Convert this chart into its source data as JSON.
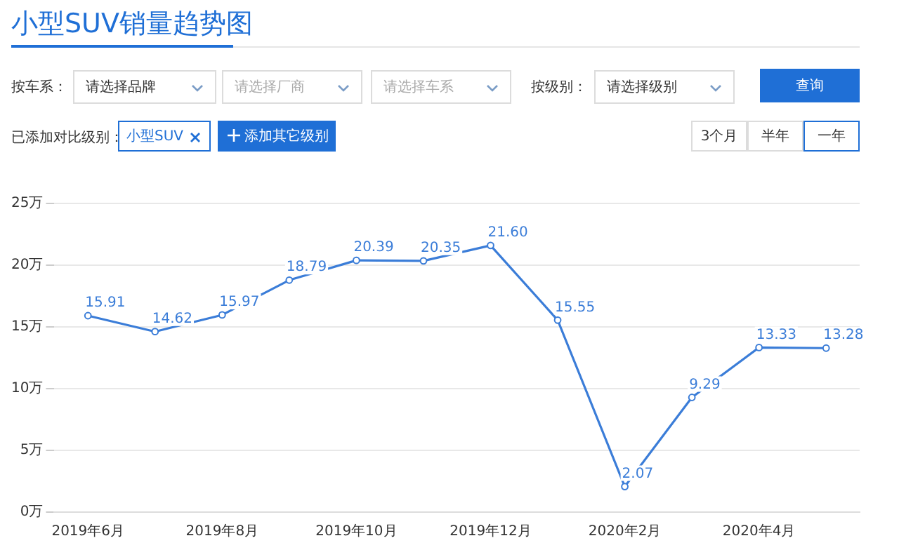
{
  "chart_data": {
    "type": "line",
    "title": "小型SUV销量趋势图",
    "categories": [
      "2019年6月",
      null,
      "2019年8月",
      null,
      "2019年10月",
      null,
      "2019年12月",
      null,
      "2020年2月",
      null,
      "2020年4月",
      null
    ],
    "series": [
      {
        "color": "#3b7dd8",
        "values": [
          15.91,
          14.62,
          15.97,
          18.79,
          20.39,
          20.35,
          21.6,
          15.55,
          2.07,
          9.29,
          13.33,
          13.28
        ],
        "value_labels": [
          "15.91",
          "14.62",
          "15.97",
          "18.79",
          "20.39",
          "20.35",
          "21.60",
          "15.55",
          "2.07",
          "9.29",
          "13.33",
          "13.28"
        ]
      }
    ],
    "ylim": [
      0,
      25
    ],
    "yticks": [
      {
        "value": 0,
        "label": "0万"
      },
      {
        "value": 5,
        "label": "5万"
      },
      {
        "value": 10,
        "label": "10万"
      },
      {
        "value": 15,
        "label": "15万"
      },
      {
        "value": 20,
        "label": "20万"
      },
      {
        "value": 25,
        "label": "25万"
      }
    ],
    "grid": "y",
    "marker": "circle",
    "line_style": "solid",
    "legend": false,
    "annotations": [
      "按车系：",
      "请选择品牌",
      "请选择厂商",
      "请选择车系",
      "按级别：",
      "请选择级别",
      "查询",
      "已添加对比级别：",
      "小型SUV",
      "添加其它级别",
      "3个月",
      "半年",
      "一年"
    ]
  }
}
